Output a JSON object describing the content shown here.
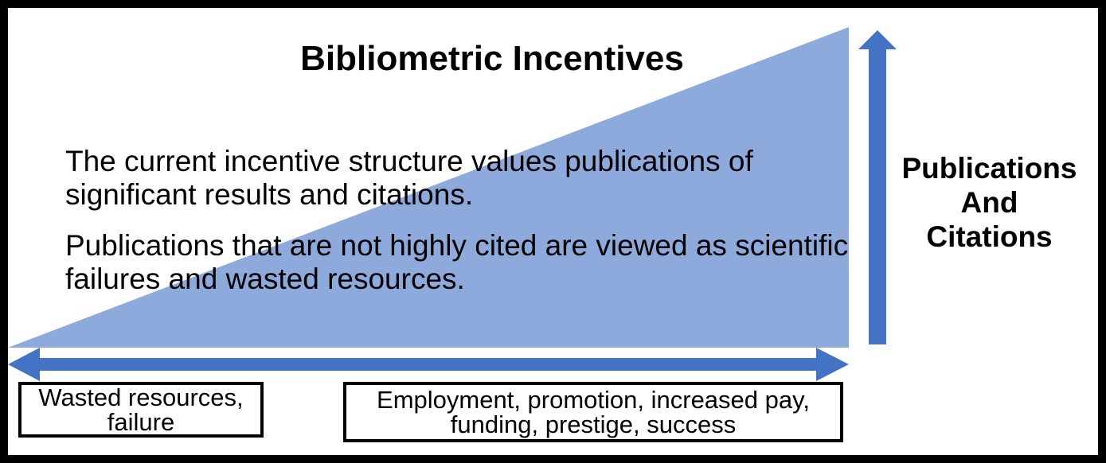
{
  "diagram": {
    "title": "Bibliometric Incentives",
    "paragraphs": [
      "The current incentive structure values publications of significant results and citations.",
      "Publications that are not highly cited are viewed as scientific failures and wasted resources."
    ],
    "vertical_axis_label": [
      "Publications",
      "And",
      "Citations"
    ],
    "left_end_label": [
      "Wasted resources,",
      "failure"
    ],
    "right_end_label": [
      "Employment, promotion, increased pay,",
      "funding, prestige, success"
    ]
  },
  "colors": {
    "wedge_fill": "#8eaadc",
    "arrow_fill": "#4472c4",
    "border": "#000000"
  }
}
